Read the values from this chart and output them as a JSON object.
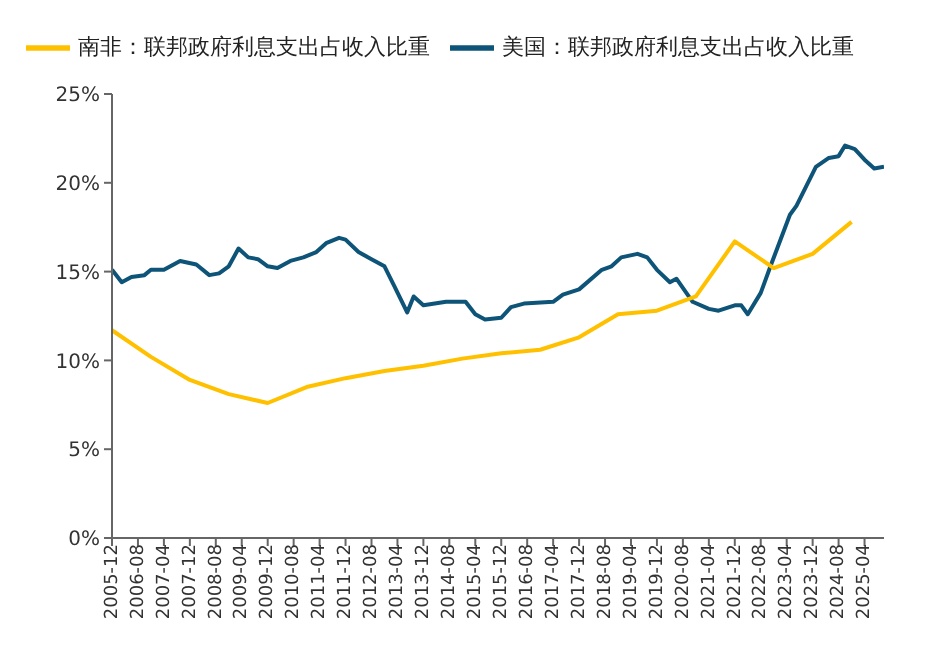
{
  "chart_data": {
    "type": "line",
    "legend": "top",
    "grid": false,
    "marker": "none",
    "line_style": "solid",
    "xlim": [
      "2005-12",
      "2025-10"
    ],
    "xticks": [
      "2005-12",
      "2006-08",
      "2007-04",
      "2007-12",
      "2008-08",
      "2009-04",
      "2009-12",
      "2010-08",
      "2011-04",
      "2011-12",
      "2012-08",
      "2013-04",
      "2013-12",
      "2014-08",
      "2015-04",
      "2015-12",
      "2016-08",
      "2017-04",
      "2017-12",
      "2018-08",
      "2019-04",
      "2019-12",
      "2020-08",
      "2021-04",
      "2021-12",
      "2022-08",
      "2023-04",
      "2023-12",
      "2024-08",
      "2025-04"
    ],
    "ylim": [
      0,
      25
    ],
    "yticks": [
      {
        "value": 0,
        "label": "0%"
      },
      {
        "value": 5,
        "label": "5%"
      },
      {
        "value": 10,
        "label": "10%"
      },
      {
        "value": 15,
        "label": "15%"
      },
      {
        "value": 20,
        "label": "20%"
      },
      {
        "value": 25,
        "label": "25%"
      }
    ],
    "series": [
      {
        "name": "美国：联邦政府利息支出占收入比重",
        "color": "#0e5478",
        "x": [
          "2005-12",
          "2006-03",
          "2006-06",
          "2006-10",
          "2006-12",
          "2007-04",
          "2007-09",
          "2008-02",
          "2008-06",
          "2008-09",
          "2008-12",
          "2009-03",
          "2009-06",
          "2009-09",
          "2009-12",
          "2010-03",
          "2010-07",
          "2010-11",
          "2011-03",
          "2011-06",
          "2011-10",
          "2011-12",
          "2012-04",
          "2012-08",
          "2012-12",
          "2013-03",
          "2013-07",
          "2013-09",
          "2013-12",
          "2014-07",
          "2015-01",
          "2015-04",
          "2015-07",
          "2015-12",
          "2016-03",
          "2016-07",
          "2017-04",
          "2017-07",
          "2017-12",
          "2018-07",
          "2018-10",
          "2019-01",
          "2019-06",
          "2019-09",
          "2019-12",
          "2020-04",
          "2020-06",
          "2020-11",
          "2021-04",
          "2021-07",
          "2021-12",
          "2022-02",
          "2022-04",
          "2022-08",
          "2022-11",
          "2023-05",
          "2023-07",
          "2024-01",
          "2024-05",
          "2024-08",
          "2024-10",
          "2025-01",
          "2025-04",
          "2025-07",
          "2025-10"
        ],
        "values": [
          15.1,
          14.4,
          14.7,
          14.8,
          15.1,
          15.1,
          15.6,
          15.4,
          14.8,
          14.9,
          15.3,
          16.3,
          15.8,
          15.7,
          15.3,
          15.2,
          15.6,
          15.8,
          16.1,
          16.6,
          16.9,
          16.8,
          16.1,
          15.7,
          15.3,
          14.2,
          12.7,
          13.6,
          13.1,
          13.3,
          13.3,
          12.6,
          12.3,
          12.4,
          13.0,
          13.2,
          13.3,
          13.7,
          14.0,
          15.1,
          15.3,
          15.8,
          16.0,
          15.8,
          15.1,
          14.4,
          14.6,
          13.3,
          12.9,
          12.8,
          13.1,
          13.1,
          12.6,
          13.8,
          15.3,
          18.2,
          18.7,
          20.9,
          21.4,
          21.5,
          22.1,
          21.9,
          21.3,
          20.8,
          20.9
        ]
      },
      {
        "name": "南非：联邦政府利息支出占收入比重",
        "color": "#ffc000",
        "x": [
          "2005-12",
          "2006-12",
          "2007-12",
          "2008-12",
          "2009-12",
          "2010-12",
          "2011-12",
          "2012-12",
          "2013-12",
          "2014-12",
          "2015-12",
          "2016-12",
          "2017-12",
          "2018-12",
          "2019-12",
          "2020-12",
          "2021-12",
          "2022-12",
          "2023-12",
          "2024-12"
        ],
        "values": [
          11.7,
          10.2,
          8.9,
          8.1,
          7.6,
          8.5,
          9.0,
          9.4,
          9.7,
          10.1,
          10.4,
          10.6,
          11.3,
          12.6,
          12.8,
          13.6,
          16.7,
          15.2,
          16.0,
          17.8
        ]
      }
    ]
  }
}
